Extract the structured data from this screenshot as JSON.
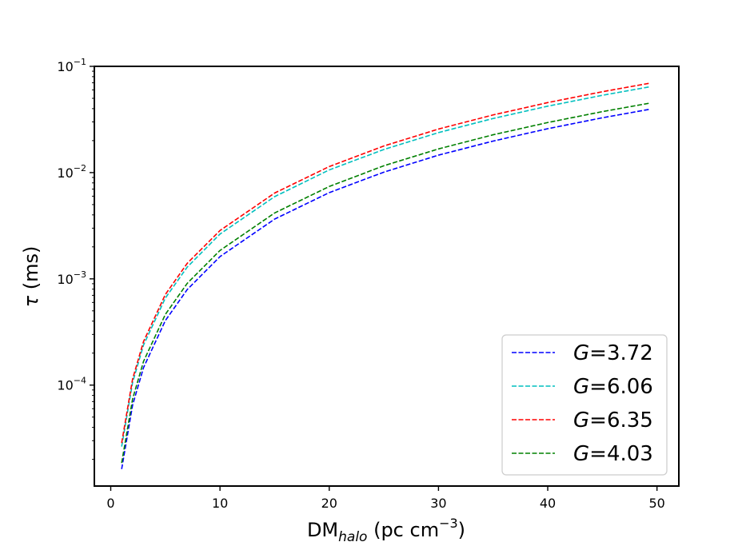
{
  "chart_data": {
    "type": "line",
    "title": "",
    "xlabel": {
      "base": "DM",
      "sub": "halo",
      "unit": " (pc cm",
      "sup": "−3",
      "close": ")"
    },
    "ylabel": {
      "symbol": "τ",
      "unit": " (ms)"
    },
    "xlim": [
      -1.5,
      52
    ],
    "ylim_log10": [
      -4.95,
      -1.0
    ],
    "yscale": "log",
    "x_ticks": [
      {
        "value": 0,
        "label": "0"
      },
      {
        "value": 10,
        "label": "10"
      },
      {
        "value": 20,
        "label": "20"
      },
      {
        "value": 30,
        "label": "30"
      },
      {
        "value": 40,
        "label": "40"
      },
      {
        "value": 50,
        "label": "50"
      }
    ],
    "y_ticks": [
      {
        "exp": -4,
        "base": "10",
        "sup": "−4"
      },
      {
        "exp": -3,
        "base": "10",
        "sup": "−3"
      },
      {
        "exp": -2,
        "base": "10",
        "sup": "−2"
      },
      {
        "exp": -1,
        "base": "10",
        "sup": "−1"
      }
    ],
    "x": [
      1,
      2,
      3,
      5,
      7,
      10,
      15,
      20,
      25,
      30,
      35,
      40,
      45,
      49.3
    ],
    "series": [
      {
        "name": "G=3.72",
        "label_var": "G",
        "label_val": "=3.72",
        "color": "#0000ff",
        "values": [
          1.62e-05,
          6.48e-05,
          0.000146,
          0.000405,
          0.000793,
          0.00162,
          0.00365,
          0.00648,
          0.0101,
          0.0146,
          0.0198,
          0.0259,
          0.0328,
          0.0394
        ]
      },
      {
        "name": "G=6.06",
        "label_var": "G",
        "label_val": "=6.06",
        "color": "#00bfbf",
        "values": [
          2.64e-05,
          0.000106,
          0.000238,
          0.00066,
          0.00129,
          0.00264,
          0.00594,
          0.0106,
          0.0165,
          0.0238,
          0.0323,
          0.0422,
          0.0534,
          0.0641
        ]
      },
      {
        "name": "G=6.35",
        "label_var": "G",
        "label_val": "=6.35",
        "color": "#ff0000",
        "values": [
          2.85e-05,
          0.000114,
          0.000257,
          0.000713,
          0.0014,
          0.00285,
          0.00642,
          0.0114,
          0.0178,
          0.0257,
          0.0349,
          0.0456,
          0.0577,
          0.0693
        ]
      },
      {
        "name": "G=4.03",
        "label_var": "G",
        "label_val": "=4.03",
        "color": "#008000",
        "values": [
          1.85e-05,
          7.4e-05,
          0.000167,
          0.000463,
          0.000907,
          0.00185,
          0.00417,
          0.0074,
          0.0116,
          0.0167,
          0.0227,
          0.0296,
          0.0375,
          0.045
        ]
      }
    ],
    "legend_position": "lower-right",
    "grid": false
  }
}
